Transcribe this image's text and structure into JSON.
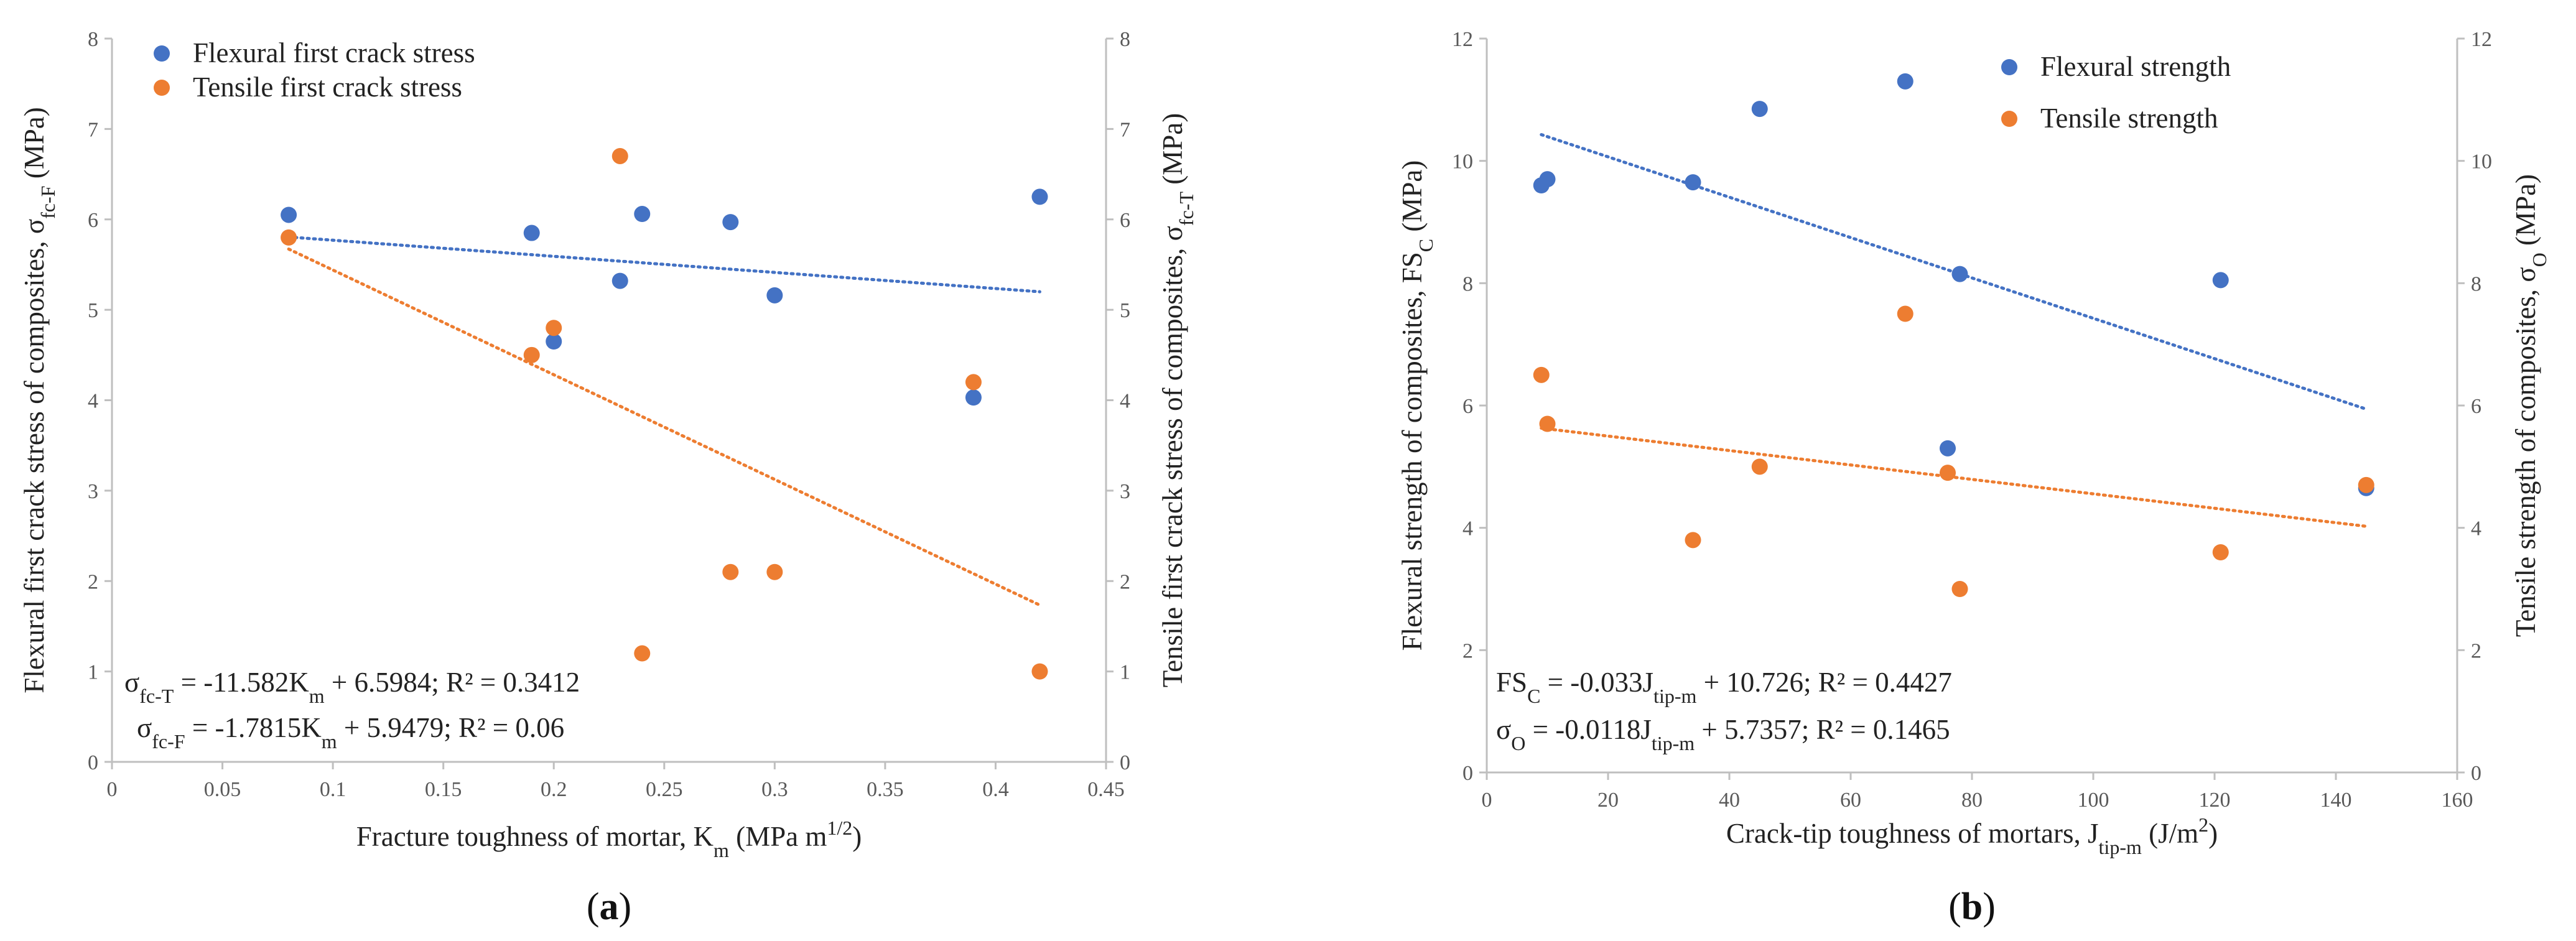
{
  "colors": {
    "blue": "#4472C4",
    "orange": "#ED7D31",
    "axis": "#BFBFBF",
    "text": "#222222",
    "tick": "#595959"
  },
  "chart_data": [
    {
      "type": "scatter",
      "panel_label": "a",
      "x_axis": {
        "label": "Fracture toughness of mortar, K",
        "label_sub": "m",
        "label_after": " (MPa m",
        "label_sup": "1/2",
        "label_end": ")",
        "min": 0,
        "max": 0.45,
        "step": 0.05,
        "ticks": [
          "0",
          "0.05",
          "0.1",
          "0.15",
          "0.2",
          "0.25",
          "0.3",
          "0.35",
          "0.4",
          "0.45"
        ]
      },
      "y_axis_left": {
        "label": "Flexural first crack stress of composites, σ",
        "label_sub": "fc-F",
        "label_end": " (MPa)",
        "min": 0,
        "max": 8,
        "step": 1,
        "ticks": [
          "0",
          "1",
          "2",
          "3",
          "4",
          "5",
          "6",
          "7",
          "8"
        ]
      },
      "y_axis_right": {
        "label": "Tensile first crack stress of composites, σ",
        "label_sub": "fc-T",
        "label_end": " (MPa)",
        "min": 0,
        "max": 8,
        "step": 1,
        "ticks": [
          "0",
          "1",
          "2",
          "3",
          "4",
          "5",
          "6",
          "7",
          "8"
        ]
      },
      "legend_position": "top-left",
      "series": [
        {
          "name": "Flexural first crack stress",
          "color_key": "blue",
          "points": [
            [
              0.08,
              6.05
            ],
            [
              0.19,
              5.85
            ],
            [
              0.2,
              4.65
            ],
            [
              0.23,
              5.32
            ],
            [
              0.24,
              6.06
            ],
            [
              0.28,
              5.97
            ],
            [
              0.3,
              5.16
            ],
            [
              0.39,
              4.03
            ],
            [
              0.42,
              6.25
            ]
          ],
          "trendline": {
            "slope": -1.7815,
            "intercept": 5.9479,
            "x_range": [
              0.08,
              0.42
            ]
          }
        },
        {
          "name": "Tensile first crack stress",
          "color_key": "orange",
          "points": [
            [
              0.08,
              5.8
            ],
            [
              0.19,
              4.5
            ],
            [
              0.2,
              4.8
            ],
            [
              0.23,
              6.7
            ],
            [
              0.24,
              1.2
            ],
            [
              0.28,
              2.1
            ],
            [
              0.3,
              2.1
            ],
            [
              0.39,
              4.2
            ],
            [
              0.42,
              1.0
            ]
          ],
          "trendline": {
            "slope": -11.582,
            "intercept": 6.5984,
            "x_range": [
              0.08,
              0.42
            ]
          }
        }
      ],
      "equations": [
        {
          "sym": "σ",
          "sub": "fc-T",
          "mid": "  = -11.582K",
          "sub2": "m",
          "tail": " + 6.5984; R² = 0.3412"
        },
        {
          "sym": "σ",
          "sub": "fc-F",
          "mid": "   = -1.7815K",
          "sub2": "m",
          "tail": " + 5.9479; R² = 0.06"
        }
      ]
    },
    {
      "type": "scatter",
      "panel_label": "b",
      "x_axis": {
        "label": "Crack-tip toughness of mortars, J",
        "label_sub": "tip-m",
        "label_after": " (J/m",
        "label_sup": "2",
        "label_end": ")",
        "min": 0,
        "max": 160,
        "step": 20,
        "ticks": [
          "0",
          "20",
          "40",
          "60",
          "80",
          "100",
          "120",
          "140",
          "160"
        ]
      },
      "y_axis_left": {
        "label": "Flexural strength of composites, FS",
        "label_sub": "C",
        "label_end": " (MPa)",
        "min": 0,
        "max": 12,
        "step": 2,
        "ticks": [
          "0",
          "2",
          "4",
          "6",
          "8",
          "10",
          "12"
        ]
      },
      "y_axis_right": {
        "label": "Tensile strength of composites, σ",
        "label_sub": "O",
        "label_end": " (MPa)",
        "min": 0,
        "max": 12,
        "step": 2,
        "ticks": [
          "0",
          "2",
          "4",
          "6",
          "8",
          "10",
          "12"
        ]
      },
      "legend_position": "top-center",
      "series": [
        {
          "name": "Flexural strength",
          "color_key": "blue",
          "points": [
            [
              9,
              9.6
            ],
            [
              10,
              9.7
            ],
            [
              34,
              9.65
            ],
            [
              45,
              10.85
            ],
            [
              69,
              11.3
            ],
            [
              76,
              5.3
            ],
            [
              78,
              8.15
            ],
            [
              121,
              8.05
            ],
            [
              145,
              4.65
            ]
          ],
          "trendline": {
            "slope": -0.033,
            "intercept": 10.726,
            "x_range": [
              9,
              145
            ]
          }
        },
        {
          "name": "Tensile strength",
          "color_key": "orange",
          "points": [
            [
              9,
              6.5
            ],
            [
              10,
              5.7
            ],
            [
              34,
              3.8
            ],
            [
              45,
              5.0
            ],
            [
              69,
              7.5
            ],
            [
              76,
              4.9
            ],
            [
              78,
              3.0
            ],
            [
              121,
              3.6
            ],
            [
              145,
              4.7
            ]
          ],
          "trendline": {
            "slope": -0.0118,
            "intercept": 5.7357,
            "x_range": [
              9,
              145
            ]
          }
        }
      ],
      "equations": [
        {
          "sym": "FS",
          "sub": "C",
          "mid": " = -0.033J",
          "sub2": "tip-m",
          "tail": " + 10.726; R² = 0.4427"
        },
        {
          "sym": "σ",
          "sub": "O",
          "mid": " = -0.0118J",
          "sub2": "tip-m",
          "tail": " + 5.7357; R² = 0.1465"
        }
      ]
    }
  ]
}
